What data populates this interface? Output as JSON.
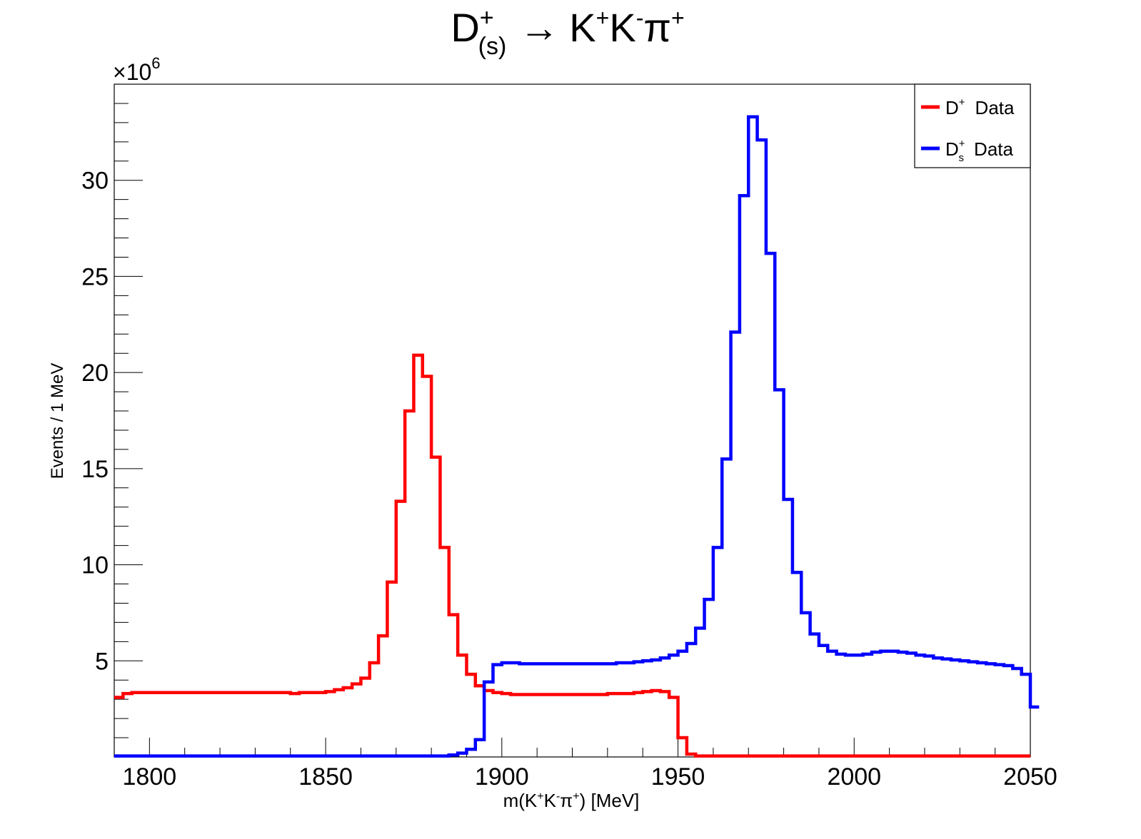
{
  "chart_data": {
    "type": "line",
    "title": {
      "main": "D",
      "sup": "+",
      "sub": "(s)",
      "arrow": "→",
      "products": [
        "K",
        "+",
        "K",
        "-",
        "π",
        "+"
      ]
    },
    "xlabel": {
      "pre": "m(K",
      "k_sup": "+",
      "mid": "K",
      "km_sup": "-",
      "pi": "π",
      "pi_sup": "+",
      "post": ") [MeV]"
    },
    "ylabel": "Events / 1 MeV",
    "y_multiplier": {
      "base": "×10",
      "exp": "6"
    },
    "xlim": [
      1790,
      2050
    ],
    "ylim": [
      0,
      35
    ],
    "x_ticks": [
      1800,
      1850,
      1900,
      1950,
      2000,
      2050
    ],
    "x_tick_labels": [
      "1800",
      "1850",
      "1900",
      "1950",
      "2000",
      "2050"
    ],
    "y_ticks": [
      5,
      10,
      15,
      20,
      25,
      30
    ],
    "y_tick_labels": [
      "5",
      "10",
      "15",
      "20",
      "25",
      "30"
    ],
    "bin_edges_start": 1790,
    "bin_width": 2.5,
    "legend_position": "top-right",
    "series": [
      {
        "name": "D+ Data",
        "legend_base": "D",
        "legend_sup": "+",
        "legend_sub": "",
        "legend_text": "Data",
        "color": "#ff0000",
        "values": [
          3.1,
          3.3,
          3.35,
          3.35,
          3.35,
          3.35,
          3.35,
          3.35,
          3.35,
          3.35,
          3.35,
          3.35,
          3.35,
          3.35,
          3.35,
          3.35,
          3.35,
          3.35,
          3.35,
          3.35,
          3.3,
          3.35,
          3.35,
          3.35,
          3.4,
          3.5,
          3.6,
          3.8,
          4.1,
          4.9,
          6.3,
          9.1,
          13.3,
          18.0,
          20.9,
          19.8,
          15.6,
          10.9,
          7.4,
          5.3,
          4.3,
          3.7,
          3.45,
          3.35,
          3.3,
          3.25,
          3.25,
          3.25,
          3.25,
          3.25,
          3.25,
          3.25,
          3.25,
          3.25,
          3.25,
          3.25,
          3.3,
          3.3,
          3.3,
          3.35,
          3.4,
          3.45,
          3.4,
          3.1,
          1.0,
          0.15,
          0.05,
          0.05,
          0.05,
          0.05,
          0.05,
          0.05,
          0.05,
          0.05,
          0.05,
          0.05,
          0.05,
          0.05,
          0.05,
          0.05,
          0.05,
          0.05,
          0.05,
          0.05,
          0.05,
          0.05,
          0.05,
          0.05,
          0.05,
          0.05,
          0.05,
          0.05,
          0.05,
          0.05,
          0.05,
          0.05,
          0.05,
          0.05,
          0.05,
          0.05,
          0.05,
          0.05,
          0.05,
          0.05
        ]
      },
      {
        "name": "Ds+ Data",
        "legend_base": "D",
        "legend_sup": "+",
        "legend_sub": "s",
        "legend_text": "Data",
        "color": "#0000ff",
        "values": [
          0.05,
          0.05,
          0.05,
          0.05,
          0.05,
          0.05,
          0.05,
          0.05,
          0.05,
          0.05,
          0.05,
          0.05,
          0.05,
          0.05,
          0.05,
          0.05,
          0.05,
          0.05,
          0.05,
          0.05,
          0.05,
          0.05,
          0.05,
          0.05,
          0.05,
          0.05,
          0.05,
          0.05,
          0.05,
          0.05,
          0.05,
          0.05,
          0.05,
          0.05,
          0.05,
          0.05,
          0.05,
          0.05,
          0.1,
          0.2,
          0.4,
          0.9,
          3.9,
          4.8,
          4.9,
          4.9,
          4.85,
          4.85,
          4.85,
          4.85,
          4.85,
          4.85,
          4.85,
          4.85,
          4.85,
          4.85,
          4.85,
          4.9,
          4.9,
          4.95,
          5.0,
          5.05,
          5.15,
          5.3,
          5.5,
          5.9,
          6.7,
          8.2,
          10.9,
          15.5,
          22.1,
          29.2,
          33.3,
          32.1,
          26.2,
          19.1,
          13.4,
          9.6,
          7.5,
          6.4,
          5.8,
          5.5,
          5.35,
          5.3,
          5.3,
          5.35,
          5.45,
          5.5,
          5.5,
          5.45,
          5.4,
          5.3,
          5.25,
          5.15,
          5.1,
          5.05,
          5.0,
          4.95,
          4.9,
          4.85,
          4.8,
          4.75,
          4.6,
          4.3,
          2.6
        ]
      }
    ]
  }
}
